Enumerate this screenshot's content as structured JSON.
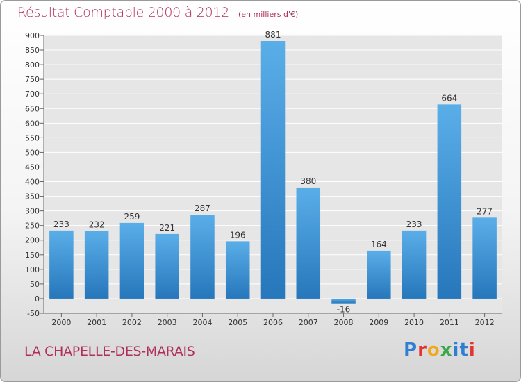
{
  "header": {
    "title": "Résultat Comptable 2000 à 2012",
    "unit": "(en milliers d'€)"
  },
  "footer": {
    "commune": "LA CHAPELLE-DES-MARAIS",
    "logo_text": "Proxiti"
  },
  "colors": {
    "bar_light": "#5aaee8",
    "bar_dark": "#2677bb",
    "title": "#b0305a",
    "grid": "#ffffff"
  },
  "chart_data": {
    "type": "bar",
    "categories": [
      "2000",
      "2001",
      "2002",
      "2003",
      "2004",
      "2005",
      "2006",
      "2007",
      "2008",
      "2009",
      "2010",
      "2011",
      "2012"
    ],
    "values": [
      233,
      232,
      259,
      221,
      287,
      196,
      881,
      380,
      -16,
      164,
      233,
      664,
      277
    ],
    "value_labels": [
      "233",
      "232",
      "259",
      "221",
      "287",
      "196",
      "881",
      "380",
      "-16",
      "164",
      "233",
      "664",
      "277"
    ],
    "ylim": [
      -50,
      900
    ],
    "yticks": [
      -50,
      0,
      50,
      100,
      150,
      200,
      250,
      300,
      350,
      400,
      450,
      500,
      550,
      600,
      650,
      700,
      750,
      800,
      850,
      900
    ],
    "grid": true,
    "legend": "none"
  }
}
